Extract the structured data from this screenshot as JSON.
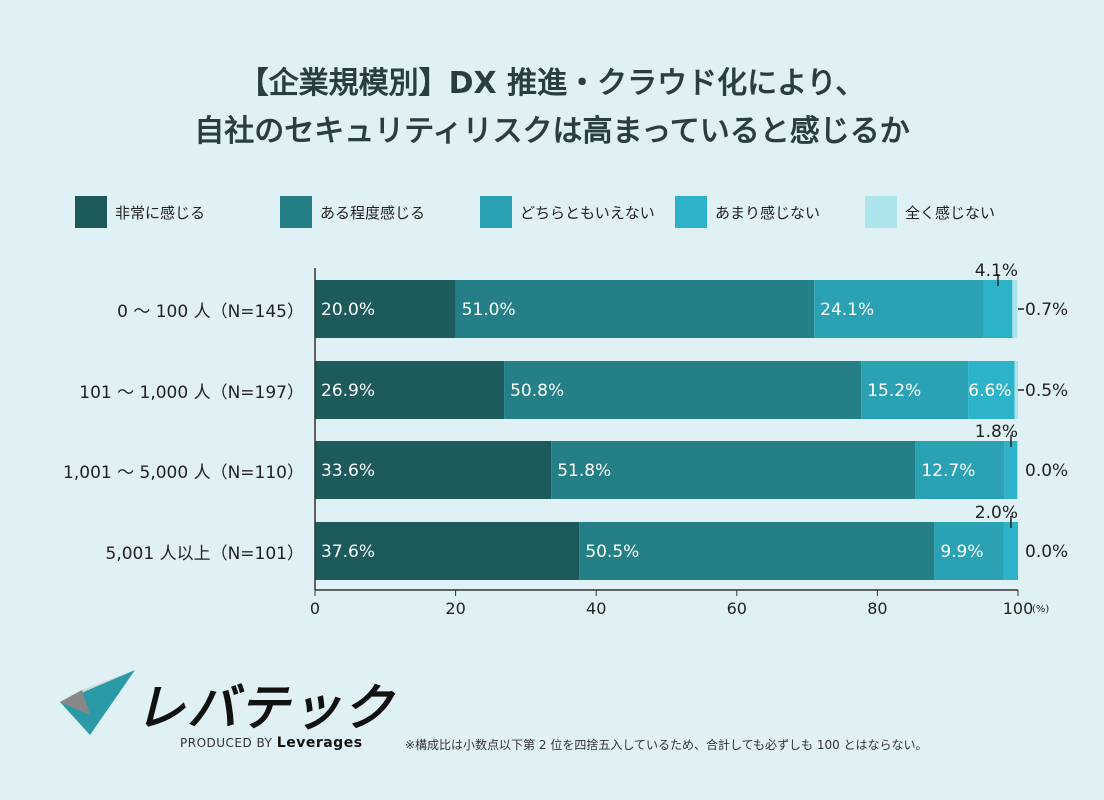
{
  "chart_data": {
    "type": "bar",
    "orientation": "horizontal",
    "stacked": true,
    "title_lines": [
      "【企業規模別】DX 推進・クラウド化により、",
      "自社のセキュリティリスクは高まっていると感じるか"
    ],
    "categories": [
      "0 ～ 100 人（N=145）",
      "101 ～ 1,000 人（N=197）",
      "1,001 ～ 5,000 人（N=110）",
      "5,001 人以上（N=101）"
    ],
    "series": [
      {
        "name": "非常に感じる",
        "color": "#1d5a5c",
        "values": [
          20.0,
          26.9,
          33.6,
          37.6
        ]
      },
      {
        "name": "ある程度感じる",
        "color": "#247f86",
        "values": [
          51.0,
          50.8,
          51.8,
          50.5
        ]
      },
      {
        "name": "どちらともいえない",
        "color": "#2aa2b3",
        "values": [
          24.1,
          15.2,
          12.7,
          9.9
        ]
      },
      {
        "name": "あまり感じない",
        "color": "#2db3c9",
        "values": [
          4.1,
          6.6,
          1.8,
          2.0
        ]
      },
      {
        "name": "全く感じない",
        "color": "#ade3ea",
        "values": [
          0.7,
          0.5,
          0.0,
          0.0
        ]
      }
    ],
    "xlim": [
      0,
      100
    ],
    "xticks": [
      "0",
      "20",
      "40",
      "60",
      "80",
      "100"
    ],
    "xunit": "(%)",
    "legend_position": "top",
    "grid": false
  },
  "footer": {
    "note": "※構成比は小数点以下第 2 位を四捨五入しているため、合計しても必ずしも 100 とはならない。",
    "logo_text": "レバテック",
    "produced_by": "PRODUCED BY",
    "brand": "Leverages"
  }
}
